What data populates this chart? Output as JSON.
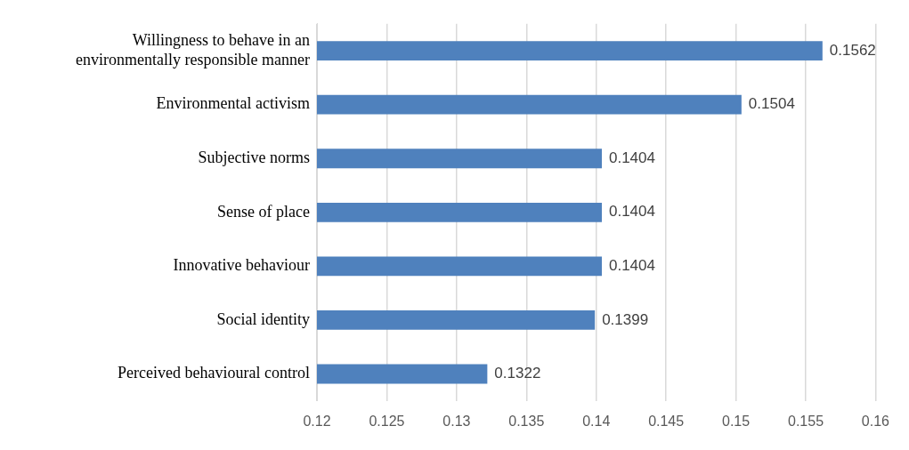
{
  "chart_data": {
    "type": "bar",
    "orientation": "horizontal",
    "categories": [
      "Willingness to behave in an environmentally responsible manner",
      "Environmental activism",
      "Subjective norms",
      "Sense of place",
      "Innovative behaviour",
      "Social identity",
      "Perceived behavioural control"
    ],
    "values": [
      0.1562,
      0.1504,
      0.1404,
      0.1404,
      0.1404,
      0.1399,
      0.1322
    ],
    "color": "#4f81bd",
    "xlim": [
      0.12,
      0.16
    ],
    "xticks": [
      0.12,
      0.125,
      0.13,
      0.135,
      0.14,
      0.145,
      0.15,
      0.155,
      0.16
    ],
    "grid": "x",
    "data_labels": true
  }
}
